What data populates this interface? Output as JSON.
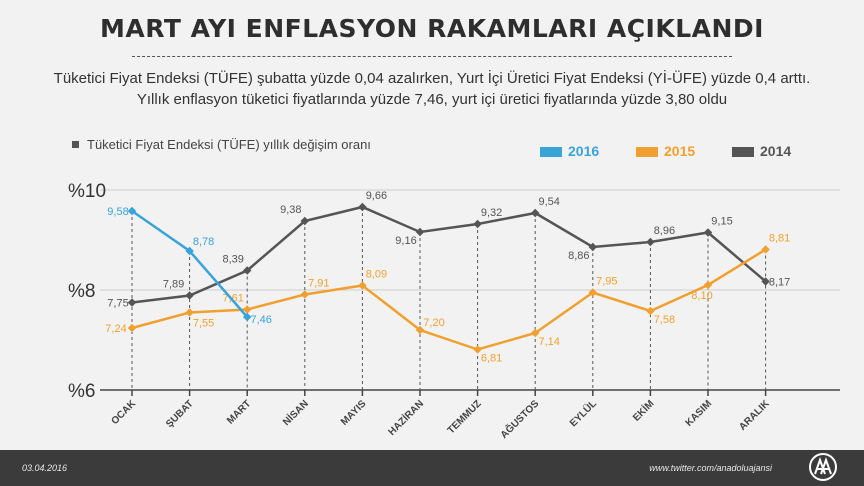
{
  "title": "MART AYI ENFLASYON RAKAMLARI AÇIKLANDI",
  "subtitle": "Tüketici Fiyat Endeksi (TÜFE) şubatta yüzde 0,04 azalırken, Yurt İçi Üretici Fiyat Endeksi (Yİ-ÜFE) yüzde 0,4 arttı. Yıllık enflasyon tüketici fiyatlarında yüzde 7,46, yurt içi üretici fiyatlarında yüzde 3,80 oldu",
  "footer": {
    "date": "03.04.2016",
    "source": "www.twitter.com/anadoluajansi"
  },
  "colors": {
    "2016": "#3aa3d8",
    "2015": "#f0a030",
    "2014": "#555555",
    "background": "#f2f2f2",
    "footer": "#3b3b3b"
  },
  "chart_data": {
    "type": "line",
    "title": "Tüketici Fiyat Endeksi (TÜFE) yıllık değişim oranı",
    "categories": [
      "OCAK",
      "ŞUBAT",
      "MART",
      "NİSAN",
      "MAYIS",
      "HAZİRAN",
      "TEMMUZ",
      "AĞUSTOS",
      "EYLÜL",
      "EKİM",
      "KASIM",
      "ARALIK"
    ],
    "y_ticks": [
      "%10",
      "%8",
      "%6"
    ],
    "ylim": [
      6,
      10
    ],
    "legend_position": "top-right",
    "series": [
      {
        "name": "2016",
        "color": "#3aa3d8",
        "values": [
          9.58,
          8.78,
          7.46,
          null,
          null,
          null,
          null,
          null,
          null,
          null,
          null,
          null
        ],
        "labels": [
          "9,58",
          "8,78",
          "7,46",
          "",
          "",
          "",
          "",
          "",
          "",
          "",
          "",
          ""
        ]
      },
      {
        "name": "2015",
        "color": "#f0a030",
        "values": [
          7.24,
          7.55,
          7.61,
          7.91,
          8.09,
          7.2,
          6.81,
          7.14,
          7.95,
          7.58,
          8.1,
          8.81
        ],
        "labels": [
          "7,24",
          "7,55",
          "7,61",
          "7,91",
          "8,09",
          "7,20",
          "6,81",
          "7,14",
          "7,95",
          "7,58",
          "8,10",
          "8,81"
        ]
      },
      {
        "name": "2014",
        "color": "#555555",
        "values": [
          7.75,
          7.89,
          8.39,
          9.38,
          9.66,
          9.16,
          9.32,
          9.54,
          8.86,
          8.96,
          9.15,
          8.17
        ],
        "labels": [
          "7,75",
          "7,89",
          "8,39",
          "9,38",
          "9,66",
          "9,16",
          "9,32",
          "9,54",
          "8,86",
          "8,96",
          "9,15",
          "8,17"
        ]
      }
    ]
  }
}
